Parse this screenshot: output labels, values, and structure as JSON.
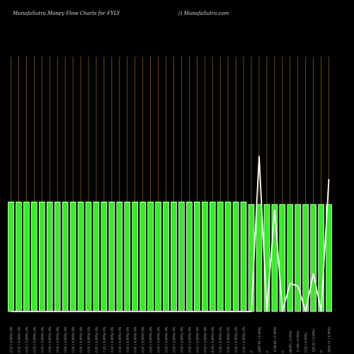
{
  "header": {
    "title": "MunafaSutra  Money Flow  Charts for FYLY",
    "source": "() MunafaSutra.com"
  },
  "colors": {
    "background": "#000000",
    "bar_fill": "#33ee22",
    "bar_border": "#ffffff",
    "grid_line": "#8a5a12",
    "line": "#ffffff",
    "label": "#bbbbbb"
  },
  "chart_data": {
    "type": "bar",
    "title": "MunafaSutra  Money Flow  Charts for FYLY",
    "xlabel": "",
    "ylabel": "",
    "grid": true,
    "ylim": [
      0,
      100
    ],
    "categories": [
      "0.01 ( 0.00%) 0%",
      "0.01 ( 0.00%) 0%",
      "0.01 ( 0.00%) 0%",
      "0.01 ( 0.00%) 0%",
      "0.01 ( 0.00%) 0%",
      "0.01 ( 0.00%) 0%",
      "0.01 ( 0.00%) 0%",
      "0.01 ( 0.00%) 0%",
      "0.01 ( 0.00%) 0%",
      "0.01 ( 0.00%) 0%",
      "0.01 ( 0.00%) 0%",
      "0.01 ( 0.00%) 0%",
      "7.22 ( 0.00%) 0%",
      "0.01 ( 0.00%) 0%",
      "0.01 ( 0.00%) 0%",
      "0.01 ( 0.00%) 0%",
      "0.01 ( 0.00%) 0%",
      "0.01 ( 0.00%) 0%",
      "0.01 ( 0.00%) 0%",
      "0.01 ( 0.00%) 0%",
      "0.01 ( 0.00%) 0%",
      "0.01 ( 0.00%) 0%",
      "0.01 ( 0.00%) 0%",
      "0.01 ( 0.00%) 0%",
      "0.01 ( 0.00%) 0%",
      "0.01 ( 0.00%) 0%",
      "8.26 ( 0.00%) 0%",
      "0.01 ( 0.00%) 0%",
      "0.01 ( 0.00%) 0%",
      "0.01 ( 0.00%) 0%",
      "0.01 ( 0.00%) 0%",
      "0",
      "2297.91 ( 0.00%)",
      "0",
      "1538.82 ( 0.00%)",
      "0",
      "88.95 ( 0.00%)",
      "11.08 ( 0.00%)",
      "0.01 ( 0.00%)",
      "128.22 ( 0.00%)",
      "0",
      "2053.11 ( 0.00%)"
    ],
    "values": [
      43,
      43,
      43,
      43,
      43,
      43,
      43,
      43,
      43,
      43,
      43,
      43,
      43,
      43,
      43,
      43,
      43,
      43,
      43,
      43,
      43,
      43,
      43,
      43,
      43,
      43,
      43,
      43,
      43,
      43,
      43,
      42,
      42,
      42,
      42,
      42,
      42,
      42,
      42,
      42,
      42,
      42
    ],
    "line": [
      0,
      0,
      0,
      0,
      0,
      0,
      0,
      0,
      0,
      0,
      0,
      0,
      0,
      0,
      0,
      0,
      0,
      0,
      0,
      0,
      0,
      0,
      0,
      0,
      0,
      0,
      0,
      0,
      0,
      0,
      0,
      0,
      61,
      0,
      40,
      0,
      11,
      10,
      0,
      15,
      0,
      52
    ]
  }
}
